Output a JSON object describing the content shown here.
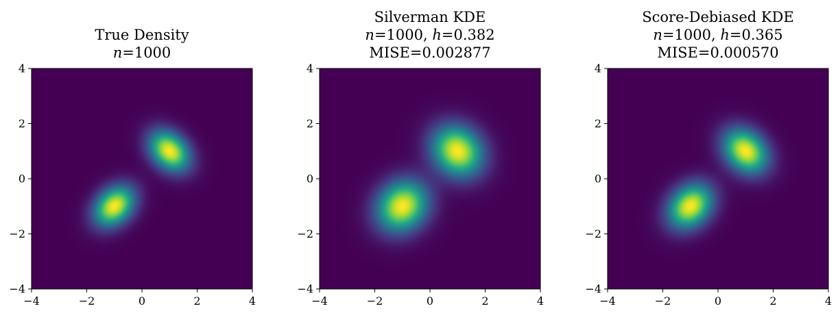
{
  "figure": {
    "colormap": "viridis",
    "background": "#ffffff"
  },
  "chart_data": [
    {
      "type": "heatmap",
      "title": "True Density",
      "title_lines": [
        [
          {
            "text": "True Density"
          }
        ],
        [
          {
            "text": "n",
            "italic": true
          },
          {
            "text": "=1000"
          }
        ]
      ],
      "n": 1000,
      "xlim": [
        -4,
        4
      ],
      "ylim": [
        -4,
        4
      ],
      "xticks": [
        -4,
        -2,
        0,
        2,
        4
      ],
      "yticks": [
        -4,
        -2,
        0,
        2,
        4
      ],
      "grid": false,
      "modes": [
        {
          "x": -1,
          "y": -1,
          "weight": 1.0,
          "sx": 0.5,
          "sy": 0.5,
          "rho": 0.3
        },
        {
          "x": 1,
          "y": 1,
          "weight": 1.0,
          "sx": 0.5,
          "sy": 0.5,
          "rho": -0.3
        }
      ]
    },
    {
      "type": "heatmap",
      "title": "Silverman KDE",
      "title_lines": [
        [
          {
            "text": "Silverman KDE"
          }
        ],
        [
          {
            "text": "n",
            "italic": true
          },
          {
            "text": "=1000, "
          },
          {
            "text": "h",
            "italic": true
          },
          {
            "text": "=0.382"
          }
        ],
        [
          {
            "text": "MISE=0.002877"
          }
        ]
      ],
      "n": 1000,
      "h": 0.382,
      "MISE": 0.002877,
      "xlim": [
        -4,
        4
      ],
      "ylim": [
        -4,
        4
      ],
      "xticks": [
        -4,
        -2,
        0,
        2,
        4
      ],
      "yticks": [
        -4,
        -2,
        0,
        2,
        4
      ],
      "grid": false,
      "modes": [
        {
          "x": -1,
          "y": -1,
          "weight": 1.0,
          "sx": 0.63,
          "sy": 0.63,
          "rho": 0.15
        },
        {
          "x": 1,
          "y": 1,
          "weight": 1.0,
          "sx": 0.63,
          "sy": 0.63,
          "rho": -0.15
        }
      ]
    },
    {
      "type": "heatmap",
      "title": "Score-Debiased KDE",
      "title_lines": [
        [
          {
            "text": "Score-Debiased KDE"
          }
        ],
        [
          {
            "text": "n",
            "italic": true
          },
          {
            "text": "=1000, "
          },
          {
            "text": "h",
            "italic": true
          },
          {
            "text": "=0.365"
          }
        ],
        [
          {
            "text": "MISE=0.000570"
          }
        ]
      ],
      "n": 1000,
      "h": 0.365,
      "MISE": 0.00057,
      "xlim": [
        -4,
        4
      ],
      "ylim": [
        -4,
        4
      ],
      "xticks": [
        -4,
        -2,
        0,
        2,
        4
      ],
      "yticks": [
        -4,
        -2,
        0,
        2,
        4
      ],
      "grid": false,
      "modes": [
        {
          "x": -1,
          "y": -1,
          "weight": 1.0,
          "sx": 0.55,
          "sy": 0.55,
          "rho": 0.25
        },
        {
          "x": 1,
          "y": 1,
          "weight": 1.0,
          "sx": 0.55,
          "sy": 0.55,
          "rho": -0.25
        }
      ]
    }
  ]
}
